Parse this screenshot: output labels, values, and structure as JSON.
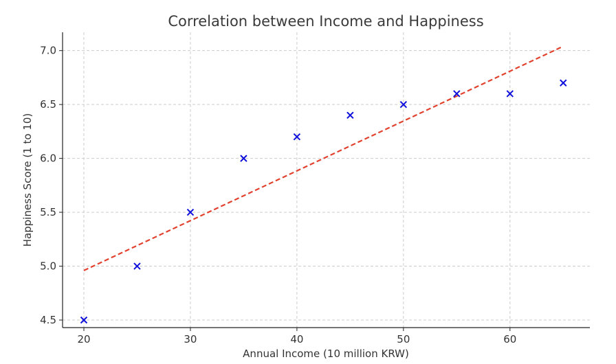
{
  "chart_data": {
    "type": "scatter",
    "title": "Correlation between Income and Happiness",
    "xlabel": "Annual Income (10 million KRW)",
    "ylabel": "Happiness Score (1 to 10)",
    "xlim": [
      18,
      67.5
    ],
    "ylim": [
      4.43,
      7.17
    ],
    "xticks": [
      20,
      30,
      40,
      50,
      60
    ],
    "yticks": [
      4.5,
      5.0,
      5.5,
      6.0,
      6.5,
      7.0
    ],
    "grid": true,
    "series": [
      {
        "name": "data",
        "marker": "x",
        "color": "#1010dd",
        "x": [
          20,
          25,
          30,
          35,
          40,
          45,
          50,
          55,
          60,
          65
        ],
        "y": [
          4.5,
          5.0,
          5.5,
          6.0,
          6.2,
          6.4,
          6.5,
          6.6,
          6.6,
          6.7
        ]
      }
    ],
    "trendline": {
      "style": "dashed",
      "color": "#e2412e",
      "x": [
        20,
        65
      ],
      "y": [
        4.96,
        7.04
      ]
    }
  }
}
